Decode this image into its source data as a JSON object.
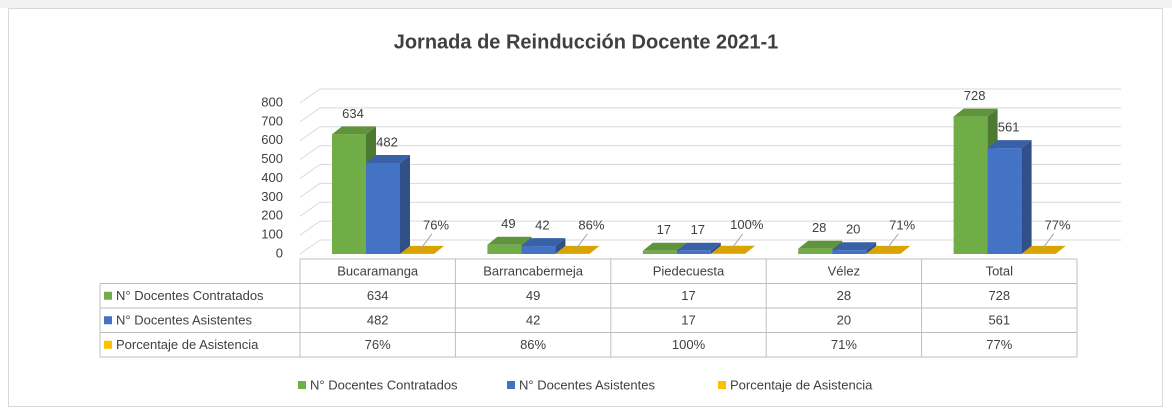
{
  "chart_data": {
    "type": "bar3d",
    "title": "Jornada de Reinducción Docente 2021-1",
    "categories": [
      "Bucaramanga",
      "Barrancabermeja",
      "Piedecuesta",
      "Vélez",
      "Total"
    ],
    "series": [
      {
        "name": "N° Docentes Contratados",
        "color": "#70ad47",
        "values": [
          634,
          49,
          17,
          28,
          728
        ]
      },
      {
        "name": "N° Docentes Asistentes",
        "color": "#4472c4",
        "values": [
          482,
          42,
          17,
          20,
          561
        ]
      },
      {
        "name": "Porcentaje de Asistencia",
        "color": "#ffc000",
        "values": [
          0.76,
          0.86,
          1,
          0.71,
          0.77
        ],
        "value_labels": [
          "76%",
          "86%",
          "100%",
          "71%",
          "77%"
        ]
      }
    ],
    "ylim": [
      0,
      800
    ],
    "yticks": [
      0,
      100,
      200,
      300,
      400,
      500,
      600,
      700,
      800
    ],
    "grid": true,
    "legend": "bottom"
  }
}
